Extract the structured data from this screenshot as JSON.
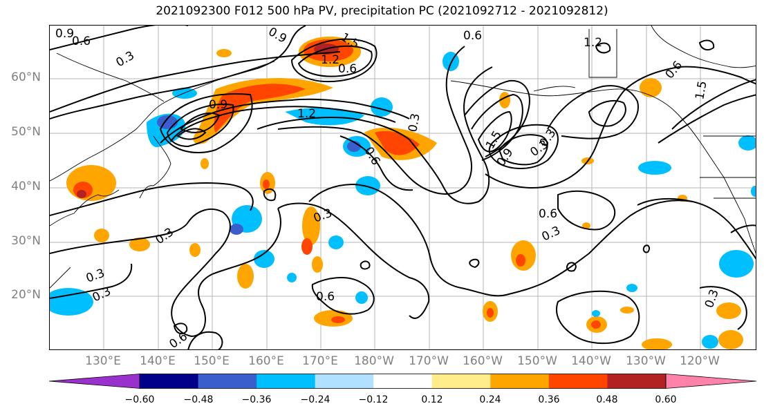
{
  "title": "2021092300 F012 500 hPa PV, precipitation PC (2021092712 - 2021092812)",
  "lat_labels": [
    "60°N",
    "50°N",
    "40°N",
    "30°N",
    "20°N"
  ],
  "lon_labels": [
    "130°E",
    "140°E",
    "150°E",
    "160°E",
    "170°E",
    "180°W",
    "170°W",
    "160°W",
    "150°W",
    "140°W",
    "130°W",
    "120°W"
  ],
  "contour_labels": [
    "0.9",
    "0.6",
    "0.3",
    "0.9",
    "1.2",
    "0.6",
    "1.5",
    "1.2",
    "0.9",
    "0.6",
    "0.3",
    "1.2",
    "1.5",
    "0.9",
    "0.3",
    "0.6",
    "0.3",
    "0.6",
    "0.3",
    "0.3",
    "0.3",
    "0.6",
    "0.6",
    "0.3",
    "0.3",
    "1.5",
    "0.6",
    "0.3"
  ],
  "colorbar": {
    "ticks": [
      "−0.60",
      "−0.48",
      "−0.36",
      "−0.24",
      "−0.12",
      "0.12",
      "0.24",
      "0.36",
      "0.48",
      "0.60"
    ],
    "colors": [
      "#9932cc",
      "#00008b",
      "#3a5fcd",
      "#00bfff",
      "#b0e2ff",
      "#ffffff",
      "#ffec8b",
      "#ffa500",
      "#ff4500",
      "#b22222",
      "#ff82ab"
    ]
  }
}
